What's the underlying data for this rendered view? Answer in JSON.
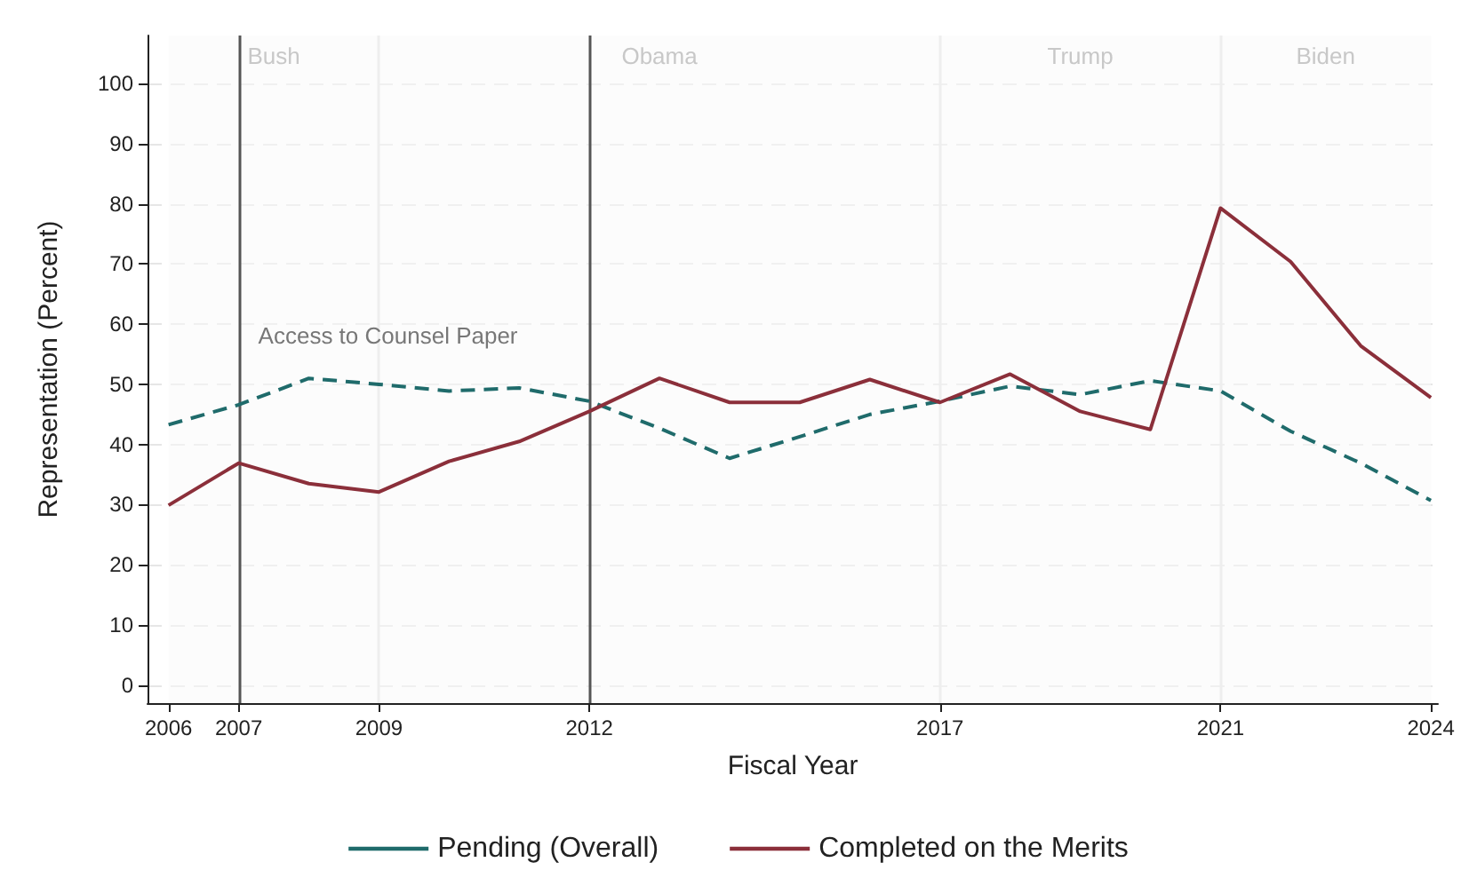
{
  "chart_data": {
    "type": "line",
    "xlabel": "Fiscal Year",
    "ylabel": "Representation (Percent)",
    "x": [
      2006,
      2007,
      2008,
      2009,
      2010,
      2011,
      2012,
      2013,
      2014,
      2015,
      2016,
      2017,
      2018,
      2019,
      2020,
      2021,
      2022,
      2023,
      2024
    ],
    "series": [
      {
        "name": "Pending (Overall)",
        "color": "#1f6b6b",
        "line_style": "dashed",
        "values": [
          43.3,
          46.6,
          51,
          50,
          48.9,
          49.4,
          47.2,
          42.7,
          37.7,
          41.3,
          45,
          47.2,
          49.7,
          48.3,
          50.6,
          48.9,
          42.2,
          36.9,
          30.7
        ]
      },
      {
        "name": "Completed on the Merits",
        "color": "#8b2f3a",
        "line_style": "solid",
        "values": [
          29.9,
          36.9,
          33.5,
          32.1,
          37.2,
          40.5,
          45.5,
          51,
          47,
          47,
          50.8,
          47,
          51.7,
          45.5,
          42.5,
          79.3,
          70.4,
          56.4,
          47.8
        ]
      }
    ],
    "xlim": [
      2005.7,
      2024.1
    ],
    "xticks": [
      2006,
      2007,
      2009,
      2012,
      2017,
      2021,
      2024
    ],
    "ylim": [
      -3,
      108
    ],
    "yticks": [
      0,
      10,
      20,
      30,
      40,
      50,
      60,
      70,
      80,
      90,
      100
    ],
    "grid": "y",
    "legend": "bottom",
    "marker": "none",
    "bands": [
      {
        "axis": "x",
        "from": 2006,
        "to": 2009,
        "label": "Bush",
        "color": "#fafafa"
      },
      {
        "axis": "x",
        "from": 2009,
        "to": 2017,
        "label": "Obama",
        "color": "#fafafa"
      },
      {
        "axis": "x",
        "from": 2017,
        "to": 2021,
        "label": "Trump",
        "color": "#fafafa"
      },
      {
        "axis": "x",
        "from": 2021,
        "to": 2024,
        "label": "Biden",
        "color": "#fafafa"
      }
    ],
    "ref_lines": [
      {
        "axis": "x",
        "value": 2007,
        "color": "#555555",
        "label": "Access to Counsel Paper"
      },
      {
        "axis": "x",
        "value": 2012,
        "color": "#555555"
      },
      {
        "axis": "x",
        "value": 2009,
        "color": "#eeeeee"
      },
      {
        "axis": "x",
        "value": 2017,
        "color": "#eeeeee"
      },
      {
        "axis": "x",
        "value": 2021,
        "color": "#eeeeee"
      }
    ]
  }
}
